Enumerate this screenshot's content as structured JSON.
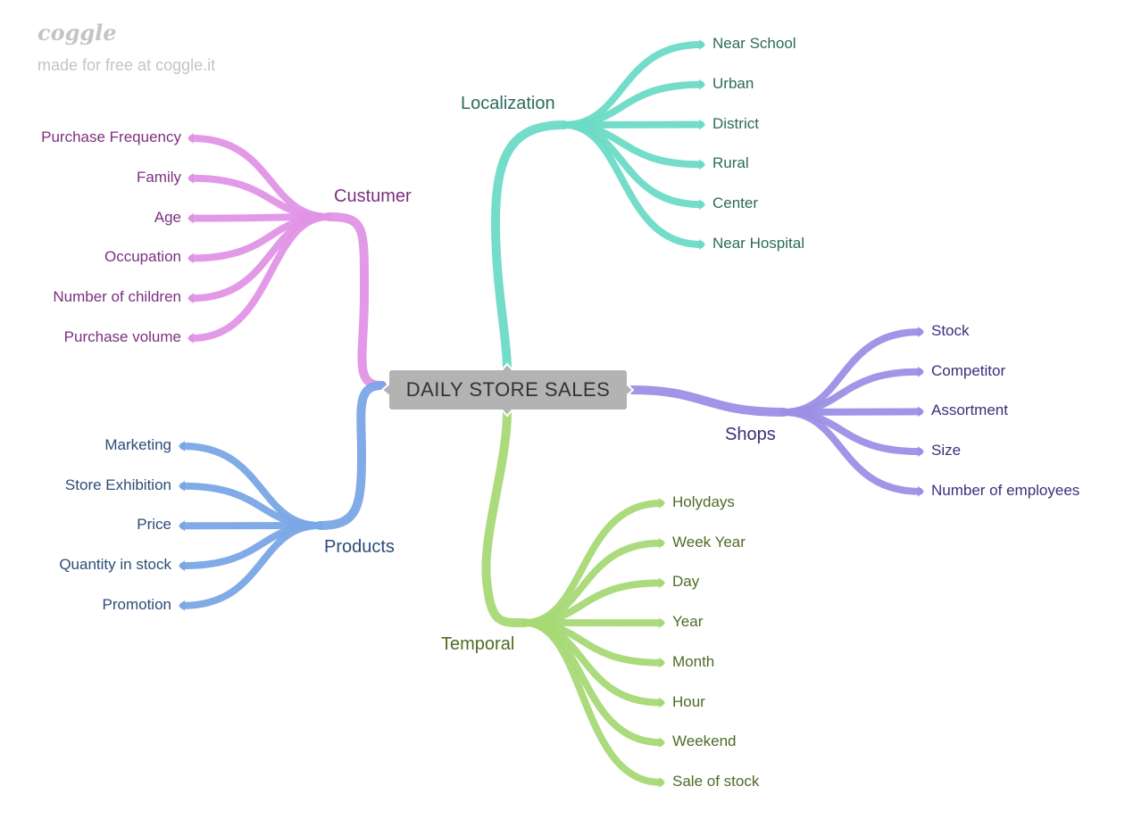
{
  "watermark": {
    "logo": "coggle",
    "tagline": "made for free at coggle.it"
  },
  "root": {
    "label": "DAILY STORE SALES"
  },
  "branches": [
    {
      "id": "custumer",
      "label": "Custumer",
      "color": "#e093e6",
      "text_color": "#7b3080",
      "leaves": [
        "Purchase Frequency",
        "Family",
        "Age",
        "Occupation",
        "Number of children",
        "Purchase volume"
      ]
    },
    {
      "id": "products",
      "label": "Products",
      "color": "#7aa6e6",
      "text_color": "#2c4c78",
      "leaves": [
        "Marketing",
        "Store Exhibition",
        "Price",
        "Quantity in stock",
        "Promotion"
      ]
    },
    {
      "id": "localization",
      "label": "Localization",
      "color": "#6cdbc6",
      "text_color": "#2a6b5c",
      "leaves": [
        "Near School",
        "Urban",
        "District",
        "Rural",
        "Center",
        "Near Hospital"
      ]
    },
    {
      "id": "shops",
      "label": "Shops",
      "color": "#9b8fe6",
      "text_color": "#3a2f7a",
      "leaves": [
        "Stock",
        "Competitor",
        "Assortment",
        "Size",
        "Number of employees"
      ]
    },
    {
      "id": "temporal",
      "label": "Temporal",
      "color": "#a6d975",
      "text_color": "#4f6b26",
      "leaves": [
        "Holydays",
        "Week Year",
        "Day",
        "Year",
        "Month",
        "Hour",
        "Weekend",
        "Sale of stock"
      ]
    }
  ]
}
